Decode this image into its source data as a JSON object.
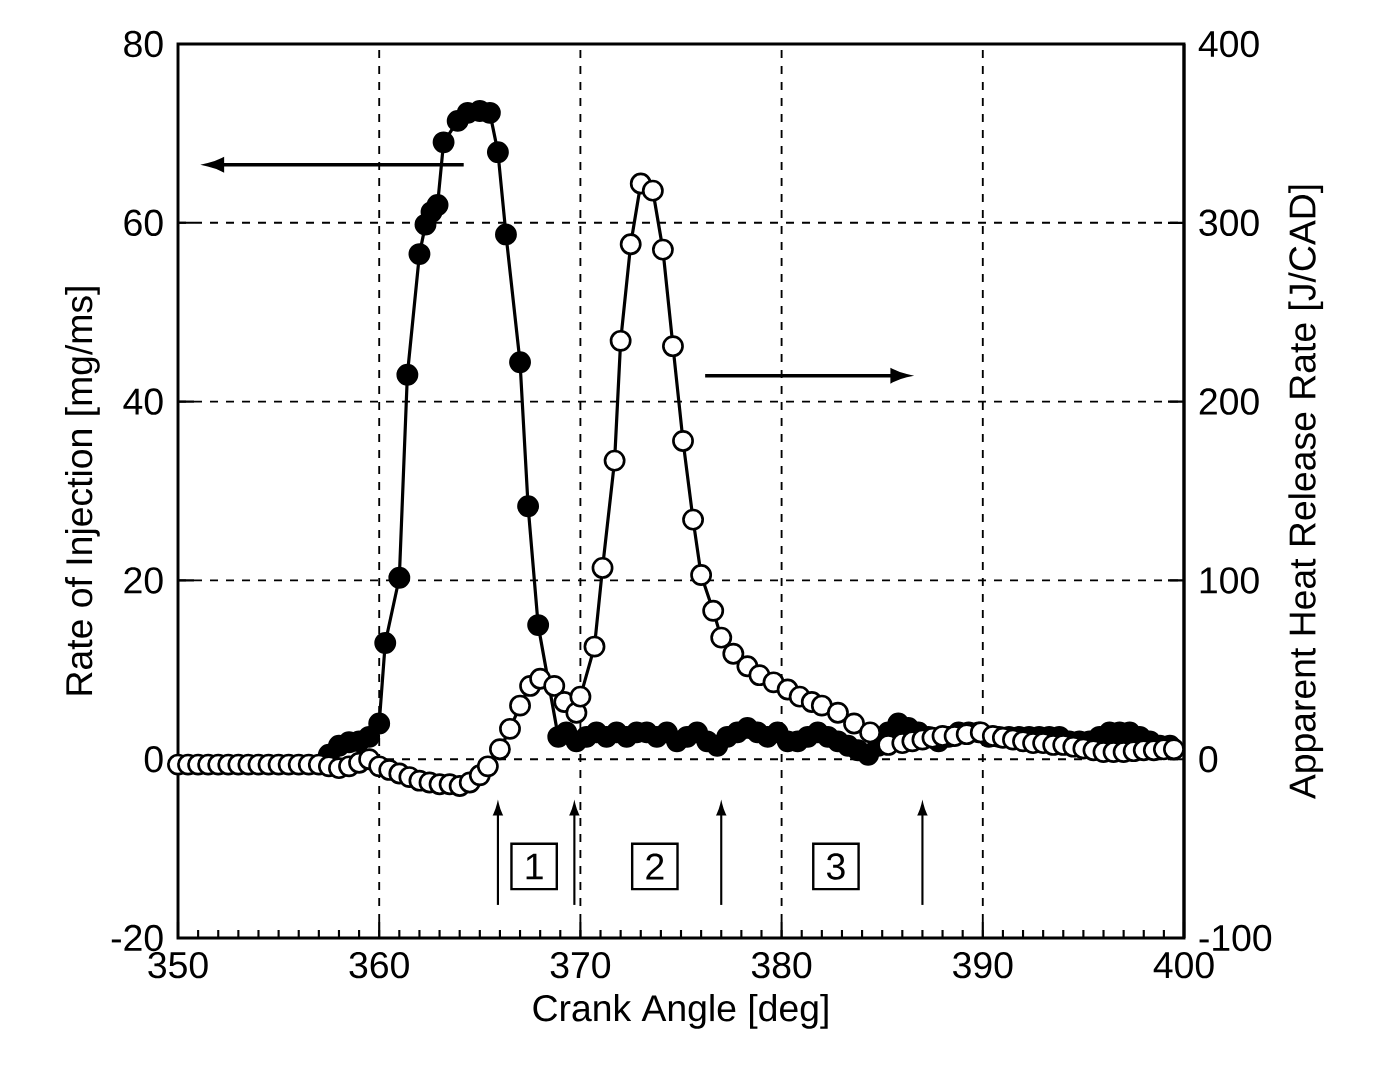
{
  "chart_data": {
    "type": "line",
    "xlabel": "Crank Angle [deg]",
    "ylabel": "Rate of Injection [mg/ms]",
    "y2label": "Apparent Heat Release Rate [J/CAD]",
    "xlim": [
      350,
      400
    ],
    "xticks": [
      350,
      360,
      370,
      380,
      390,
      400
    ],
    "ylim": [
      -20,
      80
    ],
    "yticks": [
      -20,
      0,
      20,
      40,
      60,
      80
    ],
    "y2lim": [
      -100,
      400
    ],
    "y2ticks": [
      -100,
      0,
      100,
      200,
      300,
      400
    ],
    "grid": true,
    "marker": "circle",
    "line_style": "solid",
    "series": [
      {
        "color": "#000000",
        "x": [
          357.5,
          358,
          358.5,
          359,
          359.5,
          360,
          360.3,
          361,
          361.4,
          362,
          362.3,
          362.6,
          362.9,
          363.2,
          363.9,
          364.4,
          365,
          365.5,
          365.9,
          366.3,
          367,
          367.4,
          367.9,
          368.9,
          369.3,
          369.8,
          370.3,
          370.8,
          371.3,
          371.8,
          372.3,
          372.8,
          373.3,
          373.8,
          374.3,
          374.8,
          375.3,
          375.8,
          376.3,
          376.8,
          377.3,
          377.8,
          378.3,
          378.8,
          379.3,
          379.8,
          380.3,
          380.8,
          381.3,
          381.8,
          382.3,
          382.8,
          383.3,
          383.8,
          384.3,
          384.8,
          385.3,
          385.8,
          386.3,
          386.8,
          387.3,
          387.8,
          388.3,
          388.8,
          389.3,
          389.8,
          390.3,
          390.8,
          391.3,
          391.8,
          392.3,
          392.8,
          393.3,
          393.8,
          394.3,
          394.8,
          395.3,
          395.8,
          396.3,
          396.8,
          397.3,
          397.8,
          398.3,
          398.8,
          399.3
        ],
        "values": [
          0.5,
          1.5,
          1.9,
          2,
          2.5,
          4,
          13,
          20.3,
          43,
          56.5,
          59.8,
          61.2,
          62,
          69,
          71.4,
          72.3,
          72.5,
          72.3,
          67.9,
          58.7,
          44.4,
          28.3,
          15,
          2.5,
          3,
          2,
          2.5,
          3,
          2.5,
          3,
          2.5,
          3,
          3,
          2.5,
          3,
          2,
          2.5,
          3,
          2,
          1.5,
          2.5,
          3,
          3.5,
          3,
          2.5,
          3,
          2,
          2,
          2.5,
          3,
          2.5,
          2,
          1.5,
          1,
          0.5,
          1.5,
          3,
          4,
          3.5,
          3,
          2.5,
          2,
          2.5,
          3,
          3,
          3,
          2.5,
          2.5,
          2.5,
          2.5,
          2.5,
          2.5,
          2.5,
          2.5,
          2,
          2,
          2,
          2.5,
          3,
          3,
          3,
          2.5,
          2,
          1.5,
          1.5
        ]
      },
      {
        "color": "#ffffff",
        "axis": "y2",
        "x": [
          350,
          350.5,
          351,
          351.5,
          352,
          352.5,
          353,
          353.5,
          354,
          354.5,
          355,
          355.5,
          356,
          356.5,
          357,
          357.5,
          358,
          358.5,
          359,
          359.5,
          360,
          360.5,
          361,
          361.5,
          362,
          362.5,
          363,
          363.5,
          364,
          364.5,
          365,
          365.4,
          366,
          366.5,
          367,
          367.5,
          368,
          368.7,
          369.2,
          369.8,
          370,
          370.7,
          371.1,
          371.7,
          372,
          372.5,
          373,
          373.6,
          374.1,
          374.6,
          375.1,
          375.6,
          376,
          376.6,
          377,
          377.6,
          378.3,
          378.9,
          379.6,
          380.3,
          380.9,
          381.5,
          382,
          382.8,
          383.6,
          384.4,
          385.3,
          386,
          386.5,
          387,
          387.5,
          388,
          388.6,
          389.2,
          389.9,
          390.5,
          391,
          391.5,
          392,
          392.5,
          393,
          393.5,
          394,
          394.5,
          395,
          395.5,
          396,
          396.5,
          397,
          397.5,
          398,
          398.5,
          399,
          399.5
        ],
        "values": [
          -3,
          -3,
          -3,
          -3,
          -3,
          -3,
          -3,
          -3,
          -3,
          -3,
          -3,
          -3,
          -3,
          -3,
          -3,
          -4,
          -5,
          -4,
          -2,
          0,
          -4,
          -6,
          -8,
          -10,
          -12,
          -13,
          -14,
          -14,
          -15,
          -13,
          -9,
          -4,
          5.6,
          17,
          30,
          41,
          45,
          41,
          32,
          26,
          35,
          63,
          107,
          167,
          234,
          288,
          322,
          318,
          285,
          231,
          178,
          134,
          103,
          83,
          68,
          59,
          52,
          47,
          43,
          39,
          35,
          32,
          30,
          26,
          20,
          15,
          8,
          9,
          10,
          11,
          12,
          13,
          13,
          14,
          15,
          13,
          12,
          11,
          10,
          9,
          9,
          8,
          8,
          7,
          6,
          5,
          4,
          4,
          4,
          4.5,
          5,
          5,
          5.5,
          5.6
        ]
      }
    ],
    "annotations": [
      {
        "text": "1",
        "x": 367.7,
        "y": -12
      },
      {
        "text": "2",
        "x": 373.7,
        "y": -12
      },
      {
        "text": "3",
        "x": 382.7,
        "y": -12
      }
    ]
  }
}
